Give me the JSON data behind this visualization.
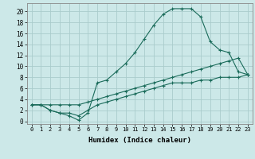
{
  "xlabel": "Humidex (Indice chaleur)",
  "background_color": "#cce8e8",
  "grid_color": "#aacccc",
  "line_color": "#1a6b5a",
  "xlim": [
    -0.5,
    23.5
  ],
  "ylim": [
    -0.5,
    21.5
  ],
  "xticks": [
    0,
    1,
    2,
    3,
    4,
    5,
    6,
    7,
    8,
    9,
    10,
    11,
    12,
    13,
    14,
    15,
    16,
    17,
    18,
    19,
    20,
    21,
    22,
    23
  ],
  "yticks": [
    0,
    2,
    4,
    6,
    8,
    10,
    12,
    14,
    16,
    18,
    20
  ],
  "line1_x": [
    0,
    1,
    2,
    3,
    4,
    5,
    6,
    7,
    8,
    9,
    10,
    11,
    12,
    13,
    14,
    15,
    16,
    17,
    18,
    19,
    20,
    21,
    22,
    23
  ],
  "line1_y": [
    3,
    3,
    2,
    1.5,
    1,
    0.2,
    1.5,
    7,
    7.5,
    9,
    10.5,
    12.5,
    15,
    17.5,
    19.5,
    20.5,
    20.5,
    20.5,
    19,
    14.5,
    13,
    12.5,
    9,
    8.5
  ],
  "line2_x": [
    0,
    1,
    2,
    3,
    4,
    5,
    6,
    7,
    8,
    9,
    10,
    11,
    12,
    13,
    14,
    15,
    16,
    17,
    18,
    19,
    20,
    21,
    22,
    23
  ],
  "line2_y": [
    3,
    3,
    3,
    3,
    3,
    3,
    3.5,
    4,
    4.5,
    5,
    5.5,
    6,
    6.5,
    7,
    7.5,
    8,
    8.5,
    9,
    9.5,
    10,
    10.5,
    11,
    11.5,
    8.5
  ],
  "line3_x": [
    0,
    1,
    2,
    3,
    4,
    5,
    6,
    7,
    8,
    9,
    10,
    11,
    12,
    13,
    14,
    15,
    16,
    17,
    18,
    19,
    20,
    21,
    22,
    23
  ],
  "line3_y": [
    3,
    3,
    2,
    1.5,
    1.5,
    1,
    2,
    3,
    3.5,
    4,
    4.5,
    5,
    5.5,
    6,
    6.5,
    7,
    7,
    7,
    7.5,
    7.5,
    8,
    8,
    8,
    8.5
  ]
}
